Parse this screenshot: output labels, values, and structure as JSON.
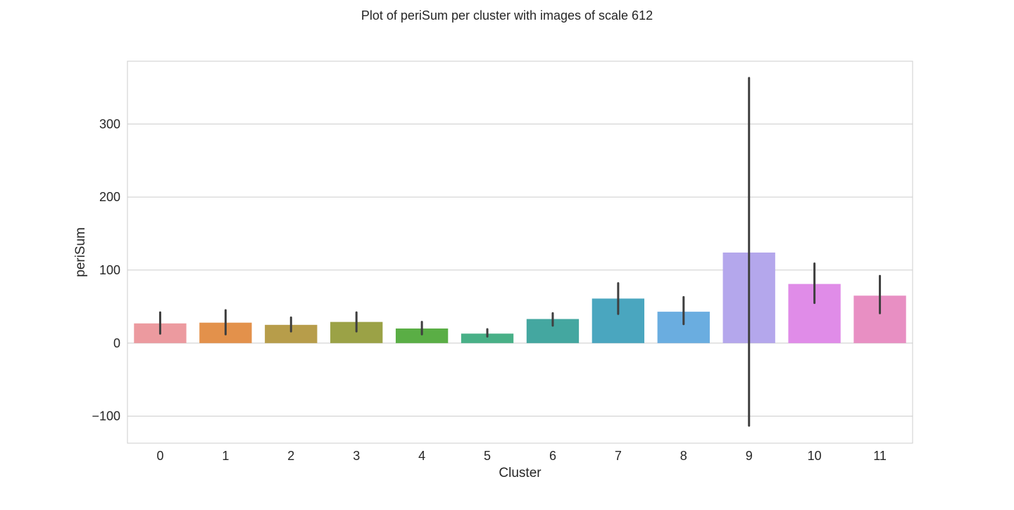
{
  "chart_data": {
    "type": "bar",
    "title": "Plot of periSum per cluster with images of scale 612",
    "xlabel": "Cluster",
    "ylabel": "periSum",
    "categories": [
      "0",
      "1",
      "2",
      "3",
      "4",
      "5",
      "6",
      "7",
      "8",
      "9",
      "10",
      "11"
    ],
    "values": [
      27,
      28,
      25,
      29,
      20,
      13,
      33,
      61,
      43,
      124,
      81,
      65
    ],
    "error_low": [
      13,
      12,
      16,
      16,
      12,
      9,
      24,
      40,
      26,
      -113,
      55,
      41
    ],
    "error_high": [
      42,
      45,
      35,
      42,
      29,
      19,
      41,
      82,
      63,
      363,
      109,
      92
    ],
    "colors": [
      "#ec9a9f",
      "#e3914b",
      "#b79d4a",
      "#9ba246",
      "#5aae45",
      "#48b087",
      "#44a7a0",
      "#4aa6bf",
      "#6aade0",
      "#b4a7ec",
      "#e08ce8",
      "#e88fc3"
    ],
    "ylim": [
      -137,
      386
    ],
    "yticks": [
      -100,
      0,
      100,
      200,
      300
    ],
    "ytick_labels": [
      "−100",
      "0",
      "100",
      "200",
      "300"
    ],
    "grid": true,
    "legend": false
  }
}
